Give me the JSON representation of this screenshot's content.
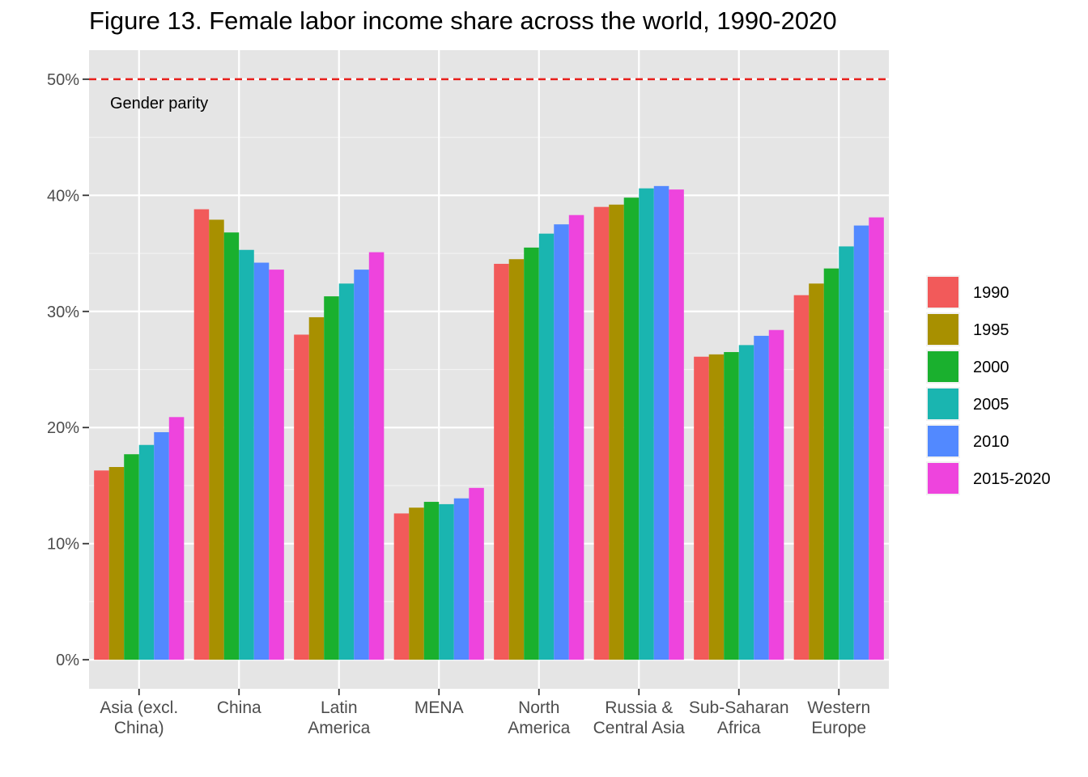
{
  "chart_data": {
    "type": "bar",
    "title": "Figure 13. Female labor income share across the world, 1990-2020",
    "xlabel": "",
    "ylabel": "",
    "ylim": [
      -2.5,
      52.5
    ],
    "yticks": [
      0,
      10,
      20,
      30,
      40,
      50
    ],
    "ytick_labels": [
      "0%",
      "10%",
      "20%",
      "30%",
      "40%",
      "50%"
    ],
    "grid": true,
    "legend_position": "right",
    "categories": [
      "Asia (excl.\nChina)",
      "China",
      "Latin\nAmerica",
      "MENA",
      "North\nAmerica",
      "Russia &\nCentral Asia",
      "Sub-Saharan\nAfrica",
      "Western\nEurope"
    ],
    "series": [
      {
        "name": "1990",
        "color": "#F25A5A",
        "values": [
          16.3,
          38.8,
          28.0,
          12.6,
          34.1,
          39.0,
          26.1,
          31.4
        ]
      },
      {
        "name": "1995",
        "color": "#A89000",
        "values": [
          16.6,
          37.9,
          29.5,
          13.1,
          34.5,
          39.2,
          26.3,
          32.4
        ]
      },
      {
        "name": "2000",
        "color": "#1AB02E",
        "values": [
          17.7,
          36.8,
          31.3,
          13.6,
          35.5,
          39.8,
          26.5,
          33.7
        ]
      },
      {
        "name": "2005",
        "color": "#1AB5B0",
        "values": [
          18.5,
          35.3,
          32.4,
          13.4,
          36.7,
          40.6,
          27.1,
          35.6
        ]
      },
      {
        "name": "2010",
        "color": "#5289FF",
        "values": [
          19.6,
          34.2,
          33.6,
          13.9,
          37.5,
          40.8,
          27.9,
          37.4
        ]
      },
      {
        "name": "2015-2020",
        "color": "#EE44DD",
        "values": [
          20.9,
          33.6,
          35.1,
          14.8,
          38.3,
          40.5,
          28.4,
          38.1
        ]
      }
    ],
    "reference_line": {
      "value": 50,
      "label": "Gender parity",
      "color": "#E8201C",
      "style": "dashed"
    },
    "panel_background": "#E5E5E5"
  }
}
